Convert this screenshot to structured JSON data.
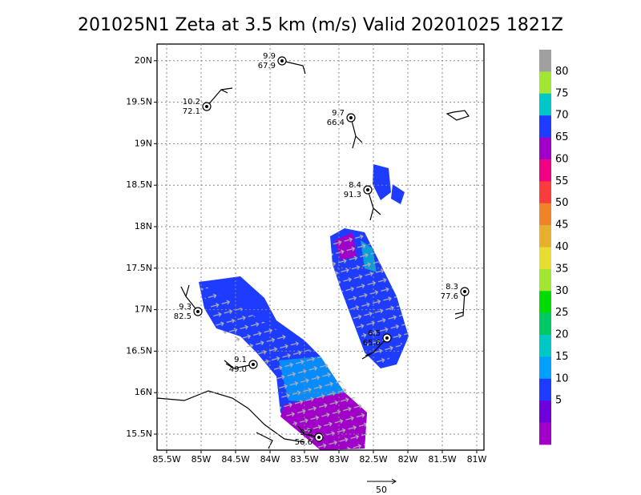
{
  "title": "201025N1 Zeta at 3.5 km (m/s) Valid 20201025 1821Z",
  "x_axis": {
    "labels": [
      "85.5W",
      "85W",
      "84.5W",
      "84W",
      "83.5W",
      "83W",
      "82.5W",
      "82W",
      "81.5W",
      "81W"
    ]
  },
  "y_axis": {
    "labels": [
      "15.5N",
      "16N",
      "16.5N",
      "17N",
      "17.5N",
      "18N",
      "18.5N",
      "19N",
      "19.5N",
      "20N"
    ]
  },
  "colorbar": {
    "labels": [
      "80",
      "75",
      "70",
      "65",
      "60",
      "55",
      "50",
      "45",
      "40",
      "35",
      "30",
      "25",
      "20",
      "15",
      "10",
      "5"
    ],
    "colors": [
      "#a0a0a0",
      "#a0e632",
      "#00c8c8",
      "#1e3cff",
      "#a000c8",
      "#f00082",
      "#fa3c3c",
      "#f08228",
      "#e6af2d",
      "#e6dc32",
      "#a0e632",
      "#00dc00",
      "#00c864",
      "#00c8c8",
      "#00a0ff",
      "#1e3cff",
      "#6e00dc",
      "#a000c8"
    ]
  },
  "stations": [
    {
      "speed": "9.9",
      "direction": "67.9"
    },
    {
      "speed": "10.2",
      "direction": "72.1"
    },
    {
      "speed": "9.7",
      "direction": "66.4"
    },
    {
      "speed": "8.4",
      "direction": "91.3"
    },
    {
      "speed": "8.3",
      "direction": "77.6"
    },
    {
      "speed": "9.3",
      "direction": "82.5"
    },
    {
      "speed": "6.5",
      "direction": "65.6"
    },
    {
      "speed": "9.1",
      "direction": "49.0"
    },
    {
      "speed": "9.2",
      "direction": "56.6"
    }
  ],
  "reference_vector": {
    "label": "50"
  }
}
